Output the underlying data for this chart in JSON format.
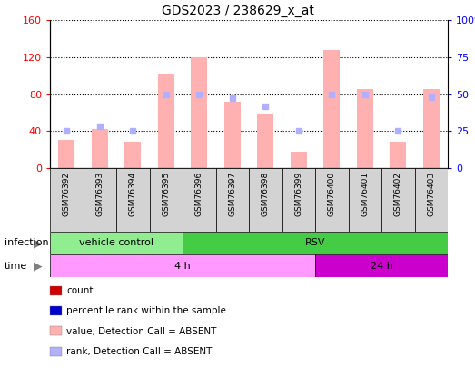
{
  "title": "GDS2023 / 238629_x_at",
  "samples": [
    "GSM76392",
    "GSM76393",
    "GSM76394",
    "GSM76395",
    "GSM76396",
    "GSM76397",
    "GSM76398",
    "GSM76399",
    "GSM76400",
    "GSM76401",
    "GSM76402",
    "GSM76403"
  ],
  "bar_values": [
    30,
    42,
    28,
    102,
    120,
    72,
    58,
    18,
    128,
    85,
    28,
    85
  ],
  "rank_values": [
    25,
    28,
    25,
    50,
    50,
    47,
    42,
    25,
    50,
    50,
    25,
    48
  ],
  "bar_color_absent": "#ffb0b0",
  "rank_color_absent": "#b0b0ff",
  "left_ylim": [
    0,
    160
  ],
  "right_ylim": [
    0,
    100
  ],
  "left_yticks": [
    0,
    40,
    80,
    120,
    160
  ],
  "right_yticks": [
    0,
    25,
    50,
    75,
    100
  ],
  "left_yticklabels": [
    "0",
    "40",
    "80",
    "120",
    "160"
  ],
  "right_yticklabels": [
    "0",
    "25",
    "50",
    "75",
    "100%"
  ],
  "infection_labels": [
    {
      "text": "vehicle control",
      "start": 0,
      "end": 4,
      "color": "#90ee90"
    },
    {
      "text": "RSV",
      "start": 4,
      "end": 12,
      "color": "#44cc44"
    }
  ],
  "time_labels": [
    {
      "text": "4 h",
      "start": 0,
      "end": 8,
      "color": "#ff99ff"
    },
    {
      "text": "24 h",
      "start": 8,
      "end": 12,
      "color": "#cc00cc"
    }
  ],
  "legend_items": [
    {
      "label": "count",
      "color": "#cc0000"
    },
    {
      "label": "percentile rank within the sample",
      "color": "#0000cc"
    },
    {
      "label": "value, Detection Call = ABSENT",
      "color": "#ffb0b0"
    },
    {
      "label": "rank, Detection Call = ABSENT",
      "color": "#b0b0ff"
    }
  ],
  "sample_bg_color": "#d3d3d3",
  "infection_row_label": "infection",
  "time_row_label": "time",
  "fig_width": 5.23,
  "fig_height": 4.05,
  "dpi": 100
}
